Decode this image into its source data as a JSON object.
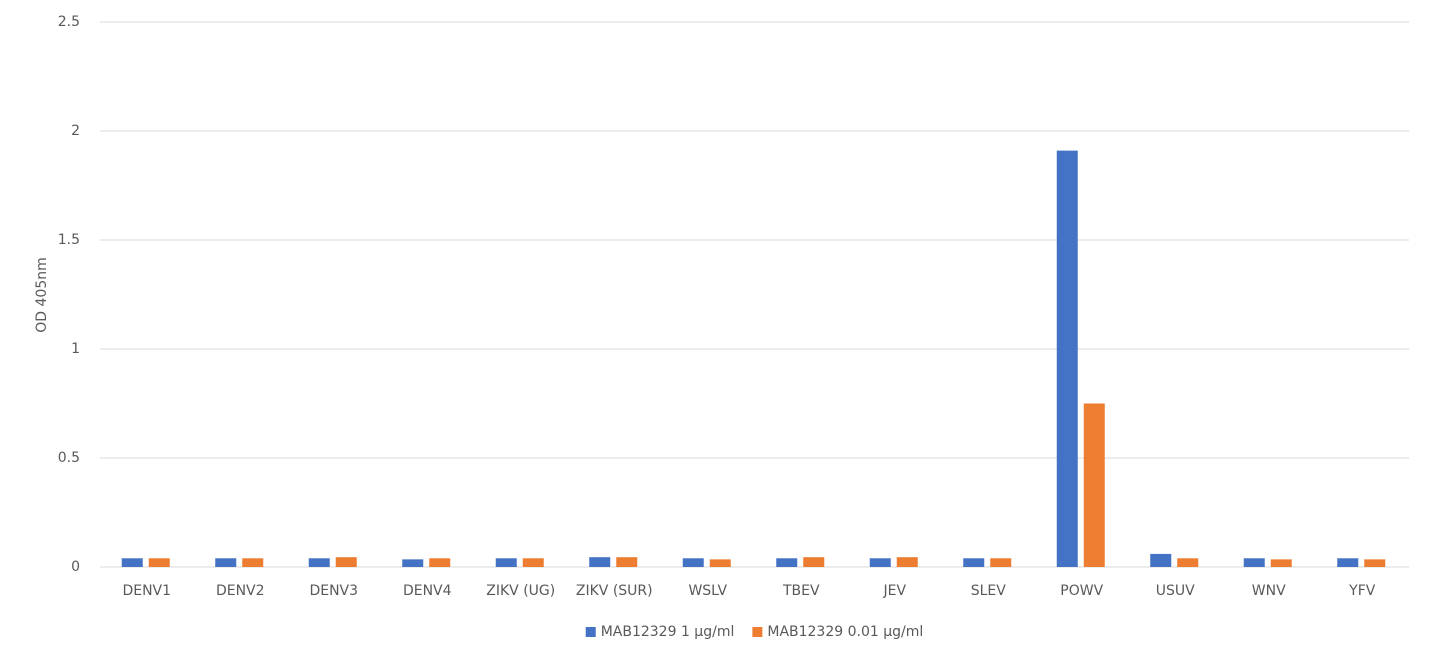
{
  "chart_data": {
    "type": "bar",
    "y_label": "OD 405nm",
    "categories": [
      "DENV1",
      "DENV2",
      "DENV3",
      "DENV4",
      "ZIKV (UG)",
      "ZIKV (SUR)",
      "WSLV",
      "TBEV",
      "JEV",
      "SLEV",
      "POWV",
      "USUV",
      "WNV",
      "YFV"
    ],
    "series": [
      {
        "name": "MAB12329 1 µg/ml",
        "color": "#4472c4",
        "values": [
          0.04,
          0.04,
          0.04,
          0.035,
          0.04,
          0.045,
          0.04,
          0.04,
          0.04,
          0.04,
          1.91,
          0.06,
          0.04,
          0.04
        ]
      },
      {
        "name": "MAB12329 0.01 µg/ml",
        "color": "#ed7d31",
        "values": [
          0.04,
          0.04,
          0.045,
          0.04,
          0.04,
          0.045,
          0.035,
          0.045,
          0.045,
          0.04,
          0.75,
          0.04,
          0.035,
          0.035
        ]
      }
    ],
    "ylim": [
      0,
      2.5
    ],
    "yticks": [
      0,
      0.5,
      1,
      1.5,
      2,
      2.5
    ],
    "grid": true,
    "legend": "bottom"
  }
}
